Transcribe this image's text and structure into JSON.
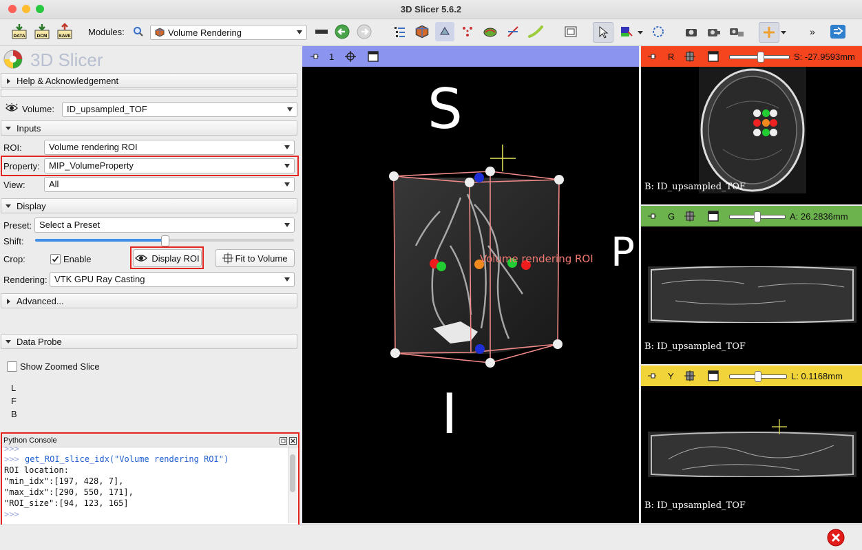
{
  "window": {
    "title": "3D Slicer 5.6.2"
  },
  "toolbar": {
    "data_label": "DATA",
    "dcm_label": "DCM",
    "save_label": "SAVE",
    "modules_label": "Modules:",
    "module_selected": "Volume Rendering",
    "overflow_label": "»"
  },
  "panel": {
    "logo_text": "3D Slicer",
    "help_section": "Help & Acknowledgement",
    "volume_label": "Volume:",
    "volume_value": "ID_upsampled_TOF",
    "inputs_section": "Inputs",
    "roi_label": "ROI:",
    "roi_value": "Volume rendering ROI",
    "property_label": "Property:",
    "property_value": "MIP_VolumeProperty",
    "view_label": "View:",
    "view_value": "All",
    "display_section": "Display",
    "preset_label": "Preset:",
    "preset_value": "Select a Preset",
    "shift_label": "Shift:",
    "shift_level": 0.5,
    "crop_label": "Crop:",
    "enable_label": "Enable",
    "enable_checked": true,
    "display_roi_label": "Display ROI",
    "fit_to_volume_label": "Fit to Volume",
    "rendering_label": "Rendering:",
    "rendering_value": "VTK GPU Ray Casting",
    "advanced_section": "Advanced...",
    "data_probe_section": "Data Probe",
    "show_zoomed_label": "Show Zoomed Slice",
    "probe_l": "L",
    "probe_f": "F",
    "probe_b": "B"
  },
  "console": {
    "title": "Python Console",
    "prompt_top": ">>>",
    "command_prompt": ">>>",
    "command": "get_ROI_slice_idx(\"Volume rendering ROI\")",
    "output": [
      "ROI location:",
      "\"min_idx\":[197, 428, 7],",
      "\"max_idx\":[290, 550, 171],",
      "\"ROI_size\":[94, 123, 165]"
    ],
    "prompt_bottom": ">>>"
  },
  "view3d": {
    "index": "1",
    "orient_s": "S",
    "orient_p": "P",
    "orient_i": "I",
    "roi_label": "Volume rendering ROI"
  },
  "red_view": {
    "letter": "R",
    "position": "S: -27.9593mm",
    "slider": 0.5,
    "label": "B: ID_upsampled_TOF"
  },
  "green_view": {
    "letter": "G",
    "position": "A: 26.2836mm",
    "slider": 0.47,
    "label": "B: ID_upsampled_TOF"
  },
  "yellow_view": {
    "letter": "Y",
    "position": "L: 0.1168mm",
    "slider": 0.48,
    "label": "B: ID_upsampled_TOF"
  },
  "colors": {
    "red_bar": "#f5451f",
    "green_bar": "#6cb24d",
    "yellow_bar": "#f0d43a",
    "view3d_bar": "#8b95ef",
    "highlight": "#e2261f"
  }
}
